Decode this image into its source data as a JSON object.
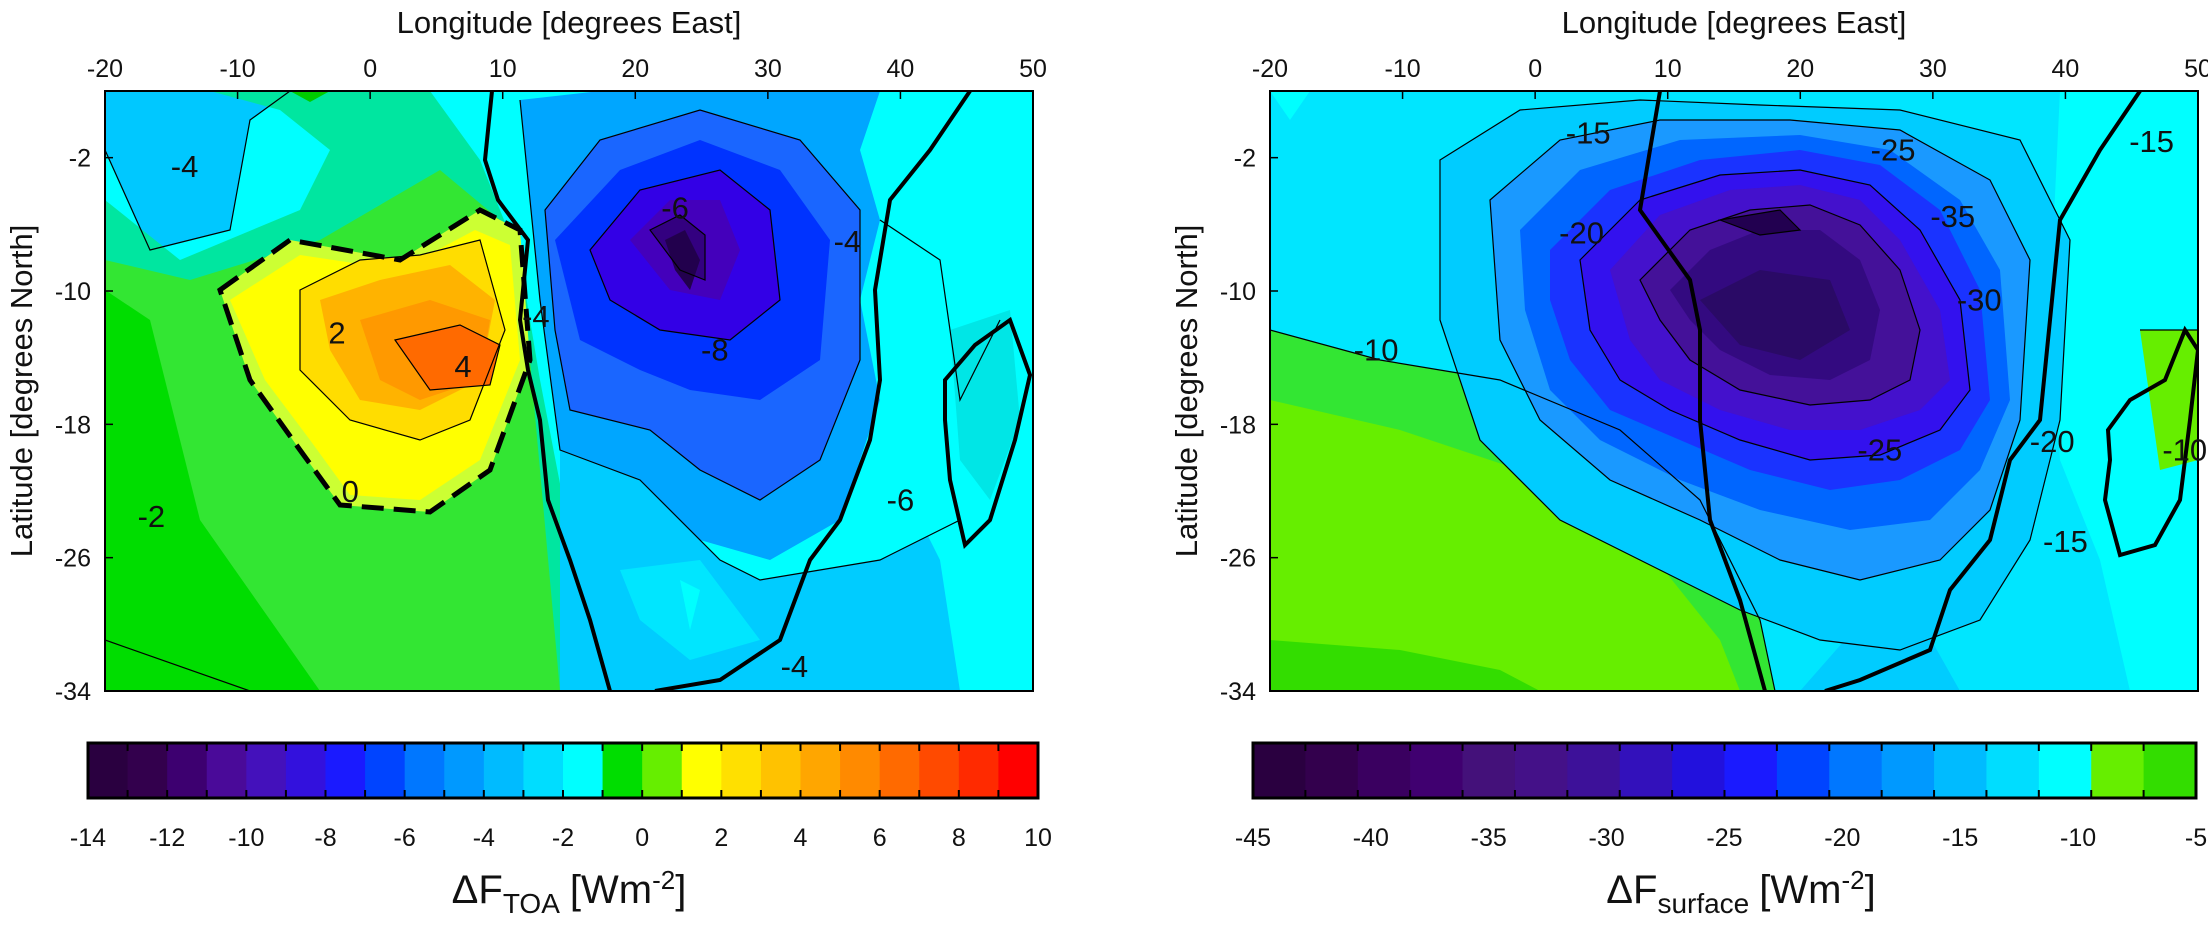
{
  "chart_data": [
    {
      "type": "heatmap",
      "subtype": "filled-contour-map",
      "xlabel": "Longitude [degrees East]",
      "ylabel": "Latitude [degrees North]",
      "xlim": [
        -20,
        50
      ],
      "ylim": [
        -34,
        2
      ],
      "x_ticks": [
        "-20",
        "-10",
        "0",
        "10",
        "20",
        "30",
        "40",
        "50"
      ],
      "y_ticks": [
        "-2",
        "-10",
        "-18",
        "-26",
        "-34"
      ],
      "contour_labels": [
        {
          "lon": -14,
          "lat": -2.5,
          "text": "-4"
        },
        {
          "lon": 23,
          "lat": -5,
          "text": "-6"
        },
        {
          "lon": -2.5,
          "lat": -12.5,
          "text": "2"
        },
        {
          "lon": 7,
          "lat": -14.5,
          "text": "4"
        },
        {
          "lon": 12.5,
          "lat": -11.5,
          "text": "-4"
        },
        {
          "lon": 26,
          "lat": -13.5,
          "text": "-8"
        },
        {
          "lon": 36,
          "lat": -7,
          "text": "-4"
        },
        {
          "lon": -1.5,
          "lat": -22,
          "text": "0"
        },
        {
          "lon": -16.5,
          "lat": -23.5,
          "text": "-2"
        },
        {
          "lon": 40,
          "lat": -22.5,
          "text": "-6"
        },
        {
          "lon": 32,
          "lat": -32.5,
          "text": "-4"
        }
      ],
      "colorbar": {
        "title": "ΔF",
        "title_sub": "TOA",
        "unit": "[Wm",
        "unit_sup": "-2",
        "unit_close": "]",
        "range": [
          -14,
          10
        ],
        "ticks": [
          "-14",
          "-12",
          "-10",
          "-8",
          "-6",
          "-4",
          "-2",
          "0",
          "2",
          "4",
          "6",
          "8",
          "10"
        ]
      }
    },
    {
      "type": "heatmap",
      "subtype": "filled-contour-map",
      "xlabel": "Longitude [degrees East]",
      "ylabel": "Latitude [degrees North]",
      "xlim": [
        -20,
        50
      ],
      "ylim": [
        -34,
        2
      ],
      "x_ticks": [
        "-20",
        "-10",
        "0",
        "10",
        "20",
        "30",
        "40",
        "50"
      ],
      "y_ticks": [
        "-2",
        "-10",
        "-18",
        "-26",
        "-34"
      ],
      "contour_labels": [
        {
          "lon": 4,
          "lat": -0.5,
          "text": "-15"
        },
        {
          "lon": 27,
          "lat": -1.5,
          "text": "-25"
        },
        {
          "lon": 46.5,
          "lat": -1,
          "text": "-15"
        },
        {
          "lon": 3.5,
          "lat": -6.5,
          "text": "-20"
        },
        {
          "lon": 31.5,
          "lat": -5.5,
          "text": "-35"
        },
        {
          "lon": 33.5,
          "lat": -10.5,
          "text": "-30"
        },
        {
          "lon": -12,
          "lat": -13.5,
          "text": "-10"
        },
        {
          "lon": 26,
          "lat": -19.5,
          "text": "-25"
        },
        {
          "lon": 39,
          "lat": -19,
          "text": "-20"
        },
        {
          "lon": 40,
          "lat": -25,
          "text": "-15"
        },
        {
          "lon": 49,
          "lat": -19.5,
          "text": "-10"
        }
      ],
      "colorbar": {
        "title": "ΔF",
        "title_sub": "surface",
        "unit": "[Wm",
        "unit_sup": "-2",
        "unit_close": "]",
        "range": [
          -45,
          -5
        ],
        "ticks": [
          "-45",
          "-40",
          "-35",
          "-30",
          "-25",
          "-20",
          "-15",
          "-10",
          "-5"
        ]
      }
    }
  ]
}
